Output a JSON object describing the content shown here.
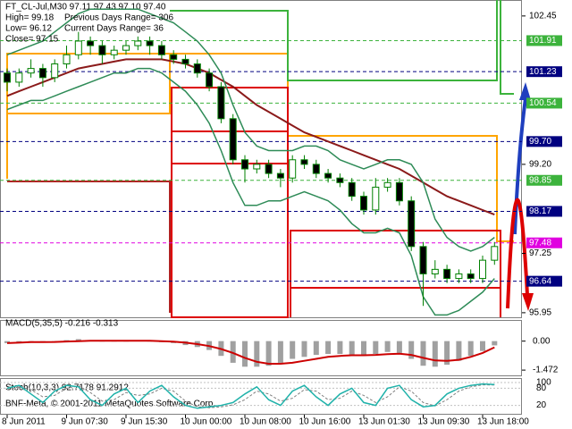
{
  "chart_data": [
    {
      "type": "candlestick",
      "title": "FT_CL-Jul,M30  97.11 97.43 97.10 97.40",
      "annotations": [
        "High= 99.18",
        "Previous Days Range= 306",
        "Low= 96.12",
        "Current Days Range= 36",
        "Close= 97.15"
      ],
      "footer": "BNF-Meta, © 2001-2011 MetaQuotes Software Corp.",
      "categories": [
        "8 Jun 2011",
        null,
        null,
        null,
        null,
        "9 Jun 07:30",
        null,
        null,
        null,
        null,
        "9 Jun 15:30",
        null,
        null,
        null,
        null,
        "10 Jun 00:00",
        null,
        null,
        null,
        null,
        "10 Jun 08:00",
        null,
        null,
        null,
        null,
        "10 Jun 16:00",
        null,
        null,
        null,
        null,
        "13 Jun 01:30",
        null,
        null,
        null,
        null,
        "13 Jun 09:30",
        null,
        null,
        null,
        null,
        "13 Jun 18:00",
        null
      ],
      "open": [
        101.2,
        101.0,
        101.2,
        101.3,
        101.1,
        101.4,
        101.6,
        101.9,
        101.8,
        101.6,
        101.7,
        101.8,
        101.9,
        101.8,
        101.6,
        101.5,
        101.4,
        101.2,
        100.9,
        100.2,
        99.3,
        99.1,
        99.2,
        99.0,
        98.9,
        99.3,
        99.2,
        99.0,
        98.9,
        98.8,
        98.5,
        98.2,
        98.7,
        98.8,
        98.4,
        97.4,
        96.8,
        96.9,
        96.7,
        96.8,
        96.7,
        97.1
      ],
      "high": [
        101.3,
        101.3,
        101.5,
        101.4,
        101.5,
        101.8,
        102.1,
        102.0,
        101.9,
        101.8,
        101.9,
        102.0,
        102.0,
        101.9,
        101.7,
        101.6,
        101.5,
        101.3,
        101.0,
        100.3,
        99.4,
        99.3,
        99.3,
        99.1,
        99.4,
        99.4,
        99.3,
        99.1,
        99.0,
        98.9,
        98.6,
        98.9,
        98.9,
        98.9,
        98.5,
        97.5,
        97.1,
        97.0,
        96.9,
        96.9,
        97.2,
        97.5
      ],
      "low": [
        100.8,
        100.9,
        101.1,
        100.9,
        101.0,
        101.3,
        101.5,
        101.6,
        101.4,
        101.5,
        101.6,
        101.7,
        101.6,
        101.5,
        101.4,
        101.3,
        101.1,
        100.8,
        100.1,
        99.2,
        98.8,
        99.0,
        98.9,
        98.7,
        98.8,
        99.1,
        98.9,
        98.8,
        98.7,
        98.4,
        98.1,
        98.1,
        98.6,
        98.3,
        97.3,
        96.1,
        96.7,
        96.6,
        96.6,
        96.6,
        96.6,
        97.0
      ],
      "close": [
        101.0,
        101.2,
        101.3,
        101.1,
        101.4,
        101.6,
        101.9,
        101.8,
        101.6,
        101.7,
        101.8,
        101.9,
        101.8,
        101.6,
        101.5,
        101.4,
        101.2,
        100.9,
        100.2,
        99.3,
        99.1,
        99.2,
        99.0,
        98.9,
        99.3,
        99.2,
        99.0,
        98.9,
        98.8,
        98.5,
        98.2,
        98.7,
        98.8,
        98.4,
        97.4,
        96.8,
        96.9,
        96.7,
        96.8,
        96.7,
        97.1,
        97.4
      ],
      "color": "#008000",
      "lines": [
        {
          "color": "#8b1a1a",
          "values": [
            100.7,
            100.8,
            100.9,
            101.0,
            101.1,
            101.2,
            101.3,
            101.35,
            101.4,
            101.45,
            101.5,
            101.5,
            101.5,
            101.5,
            101.45,
            101.4,
            101.3,
            101.2,
            101.05,
            100.9,
            100.7,
            100.5,
            100.35,
            100.2,
            100.05,
            99.9,
            99.8,
            99.7,
            99.6,
            99.5,
            99.4,
            99.3,
            99.2,
            99.1,
            98.95,
            98.8,
            98.65,
            98.5,
            98.4,
            98.3,
            98.2,
            98.1
          ]
        },
        {
          "color": "#2e8b57",
          "values": [
            101.6,
            101.7,
            101.8,
            101.9,
            102.1,
            102.3,
            102.5,
            102.6,
            102.6,
            102.6,
            102.6,
            102.6,
            102.5,
            102.4,
            102.3,
            102.1,
            101.9,
            101.6,
            101.2,
            100.5,
            99.9,
            99.6,
            99.5,
            99.5,
            99.5,
            99.6,
            99.6,
            99.5,
            99.3,
            99.2,
            99.1,
            99.2,
            99.3,
            99.3,
            99.2,
            98.8,
            98.0,
            97.6,
            97.4,
            97.3,
            97.4,
            97.6
          ]
        },
        {
          "color": "#2e8b57",
          "values": [
            100.4,
            100.5,
            100.6,
            100.6,
            100.7,
            100.8,
            100.9,
            101.0,
            101.1,
            101.2,
            101.2,
            101.3,
            101.3,
            101.2,
            101.0,
            100.8,
            100.5,
            100.1,
            99.5,
            98.8,
            98.3,
            98.3,
            98.4,
            98.4,
            98.5,
            98.6,
            98.5,
            98.4,
            98.2,
            97.9,
            97.7,
            97.7,
            97.8,
            97.7,
            97.2,
            96.3,
            95.9,
            95.9,
            96.0,
            96.2,
            96.4,
            96.7
          ]
        }
      ],
      "ylim": [
        95.85,
        102.78
      ],
      "yticks": [
        102.45,
        101.91,
        101.23,
        100.54,
        {
          "value": 99.7,
          "label": "99.70"
        },
        {
          "value": 99.2,
          "label": "99.20"
        },
        98.85,
        98.17,
        97.48,
        97.25,
        96.64,
        95.95
      ],
      "ytick_colors": [
        null,
        "#3cb33c",
        "#000080",
        "#3cb33c",
        "#000080",
        null,
        "#3cb33c",
        "#000080",
        "#e000e0",
        null,
        "#000080",
        null
      ]
    },
    {
      "type": "macd",
      "title": "MACD(5,35,5) -0.216 -0.313",
      "values": [
        -0.1,
        -0.05,
        0.0,
        -0.05,
        -0.05,
        0.05,
        0.1,
        0.05,
        0.0,
        0.0,
        0.0,
        0.05,
        0.0,
        -0.05,
        -0.1,
        -0.2,
        -0.3,
        -0.45,
        -0.75,
        -1.1,
        -1.3,
        -1.3,
        -1.25,
        -1.1,
        -0.9,
        -0.8,
        -0.7,
        -0.65,
        -0.65,
        -0.7,
        -0.75,
        -0.65,
        -0.55,
        -0.6,
        -0.9,
        -1.25,
        -1.3,
        -1.2,
        -1.0,
        -0.75,
        -0.5,
        -0.216
      ],
      "signal": [
        -0.1,
        -0.08,
        -0.05,
        -0.05,
        -0.04,
        -0.02,
        0.0,
        0.02,
        0.02,
        0.02,
        0.02,
        0.02,
        0.02,
        0.0,
        -0.03,
        -0.08,
        -0.15,
        -0.25,
        -0.4,
        -0.6,
        -0.85,
        -1.05,
        -1.15,
        -1.15,
        -1.1,
        -1.0,
        -0.9,
        -0.8,
        -0.75,
        -0.72,
        -0.72,
        -0.7,
        -0.66,
        -0.64,
        -0.7,
        -0.85,
        -0.98,
        -1.0,
        -0.95,
        -0.8,
        -0.6,
        -0.313
      ],
      "color": "#a0a0a0",
      "signal_color": "#cc0000",
      "ylim": [
        -1.74,
        1.03
      ],
      "yticks": [
        {
          "value": 0,
          "label": "0.00"
        },
        -1.472
      ]
    },
    {
      "type": "stochastic",
      "title": "Stoch(10,3,3) 92.7178 91.2912",
      "values": [
        80,
        90,
        60,
        30,
        70,
        90,
        85,
        40,
        20,
        60,
        80,
        30,
        70,
        90,
        50,
        20,
        10,
        15,
        20,
        30,
        60,
        85,
        40,
        20,
        70,
        90,
        50,
        20,
        60,
        80,
        30,
        20,
        80,
        90,
        40,
        15,
        20,
        60,
        80,
        90,
        95,
        92.7178
      ],
      "signal": [
        75,
        85,
        75,
        50,
        55,
        80,
        88,
        65,
        35,
        40,
        65,
        55,
        60,
        80,
        70,
        35,
        15,
        12,
        15,
        22,
        40,
        70,
        60,
        35,
        45,
        75,
        70,
        40,
        45,
        70,
        55,
        30,
        50,
        85,
        70,
        30,
        18,
        40,
        70,
        85,
        92,
        91.2912
      ],
      "color": "#20b2aa",
      "signal_color": "#808080",
      "ylim": [
        0,
        100
      ],
      "yticks": [
        100,
        80,
        20
      ]
    }
  ]
}
